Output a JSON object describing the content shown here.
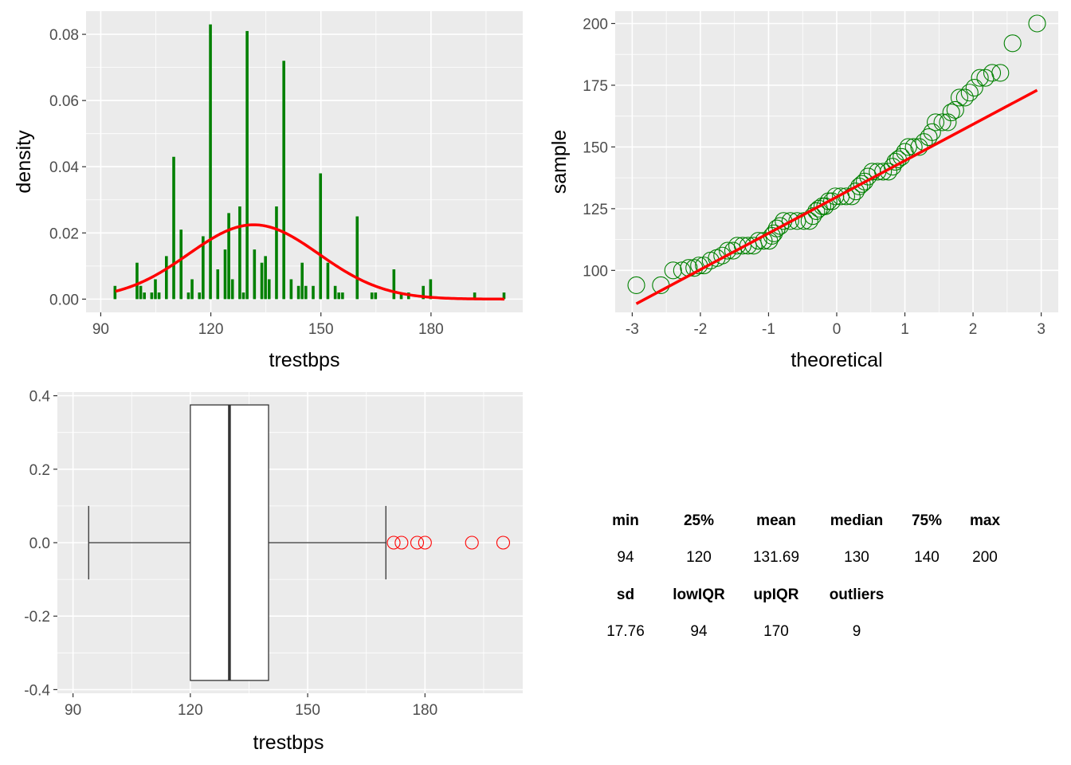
{
  "colors": {
    "panel_bg": "#ebebeb",
    "grid": "#ffffff",
    "bar": "#008000",
    "curve": "#ff0000",
    "qq_point": "#008000",
    "qq_line": "#ff0000",
    "outlier": "#ff0000"
  },
  "chart_data": [
    {
      "type": "bar",
      "kind": "histogram",
      "xlabel": "trestbps",
      "ylabel": "density",
      "xlim": [
        86,
        205
      ],
      "ylim": [
        -0.004,
        0.087
      ],
      "x_ticks": [
        90,
        120,
        150,
        180
      ],
      "y_ticks": [
        0.0,
        0.02,
        0.04,
        0.06,
        0.08
      ],
      "x_tick_labels": [
        "90",
        "120",
        "150",
        "180"
      ],
      "y_tick_labels": [
        "0.00",
        "0.02",
        "0.04",
        "0.06",
        "0.08"
      ],
      "bars": [
        {
          "x": 94,
          "value": 0.004
        },
        {
          "x": 100,
          "value": 0.011
        },
        {
          "x": 101,
          "value": 0.004
        },
        {
          "x": 102,
          "value": 0.002
        },
        {
          "x": 104,
          "value": 0.002
        },
        {
          "x": 105,
          "value": 0.006
        },
        {
          "x": 106,
          "value": 0.002
        },
        {
          "x": 108,
          "value": 0.013
        },
        {
          "x": 110,
          "value": 0.043
        },
        {
          "x": 112,
          "value": 0.021
        },
        {
          "x": 114,
          "value": 0.002
        },
        {
          "x": 115,
          "value": 0.006
        },
        {
          "x": 117,
          "value": 0.002
        },
        {
          "x": 118,
          "value": 0.019
        },
        {
          "x": 120,
          "value": 0.083
        },
        {
          "x": 122,
          "value": 0.009
        },
        {
          "x": 124,
          "value": 0.015
        },
        {
          "x": 125,
          "value": 0.026
        },
        {
          "x": 126,
          "value": 0.006
        },
        {
          "x": 128,
          "value": 0.028
        },
        {
          "x": 129,
          "value": 0.002
        },
        {
          "x": 130,
          "value": 0.081
        },
        {
          "x": 132,
          "value": 0.015
        },
        {
          "x": 134,
          "value": 0.011
        },
        {
          "x": 135,
          "value": 0.013
        },
        {
          "x": 136,
          "value": 0.006
        },
        {
          "x": 138,
          "value": 0.028
        },
        {
          "x": 140,
          "value": 0.072
        },
        {
          "x": 142,
          "value": 0.006
        },
        {
          "x": 144,
          "value": 0.004
        },
        {
          "x": 145,
          "value": 0.011
        },
        {
          "x": 146,
          "value": 0.004
        },
        {
          "x": 148,
          "value": 0.004
        },
        {
          "x": 150,
          "value": 0.038
        },
        {
          "x": 152,
          "value": 0.011
        },
        {
          "x": 154,
          "value": 0.004
        },
        {
          "x": 155,
          "value": 0.002
        },
        {
          "x": 156,
          "value": 0.002
        },
        {
          "x": 160,
          "value": 0.025
        },
        {
          "x": 164,
          "value": 0.002
        },
        {
          "x": 165,
          "value": 0.002
        },
        {
          "x": 170,
          "value": 0.009
        },
        {
          "x": 172,
          "value": 0.002
        },
        {
          "x": 174,
          "value": 0.002
        },
        {
          "x": 178,
          "value": 0.004
        },
        {
          "x": 180,
          "value": 0.006
        },
        {
          "x": 192,
          "value": 0.002
        },
        {
          "x": 200,
          "value": 0.002
        }
      ],
      "bar_width": 1,
      "normal_curve": {
        "mean": 131.69,
        "sd": 17.76,
        "from": 94,
        "to": 200
      }
    },
    {
      "type": "scatter",
      "kind": "qq-plot",
      "xlabel": "theoretical",
      "ylabel": "sample",
      "xlim": [
        -3.25,
        3.25
      ],
      "ylim": [
        83,
        205
      ],
      "x_ticks": [
        -3,
        -2,
        -1,
        0,
        1,
        2,
        3
      ],
      "y_ticks": [
        100,
        125,
        150,
        175,
        200
      ],
      "x_tick_labels": [
        "-3",
        "-2",
        "-1",
        "0",
        "1",
        "2",
        "3"
      ],
      "y_tick_labels": [
        "100",
        "125",
        "150",
        "175",
        "200"
      ],
      "points": [
        {
          "x": -2.94,
          "y": 94
        },
        {
          "x": -2.58,
          "y": 94
        },
        {
          "x": -2.4,
          "y": 100
        },
        {
          "x": -2.27,
          "y": 100
        },
        {
          "x": -2.17,
          "y": 101
        },
        {
          "x": -2.09,
          "y": 101
        },
        {
          "x": -2.02,
          "y": 102
        },
        {
          "x": -1.95,
          "y": 102
        },
        {
          "x": -1.85,
          "y": 104
        },
        {
          "x": -1.76,
          "y": 105
        },
        {
          "x": -1.68,
          "y": 106
        },
        {
          "x": -1.6,
          "y": 108
        },
        {
          "x": -1.52,
          "y": 108
        },
        {
          "x": -1.46,
          "y": 110
        },
        {
          "x": -1.38,
          "y": 110
        },
        {
          "x": -1.3,
          "y": 110
        },
        {
          "x": -1.22,
          "y": 110
        },
        {
          "x": -1.15,
          "y": 112
        },
        {
          "x": -1.07,
          "y": 112
        },
        {
          "x": -0.99,
          "y": 112
        },
        {
          "x": -0.95,
          "y": 114
        },
        {
          "x": -0.92,
          "y": 115
        },
        {
          "x": -0.88,
          "y": 117
        },
        {
          "x": -0.83,
          "y": 118
        },
        {
          "x": -0.78,
          "y": 120
        },
        {
          "x": -0.68,
          "y": 120
        },
        {
          "x": -0.58,
          "y": 120
        },
        {
          "x": -0.48,
          "y": 120
        },
        {
          "x": -0.4,
          "y": 120
        },
        {
          "x": -0.35,
          "y": 122
        },
        {
          "x": -0.3,
          "y": 124
        },
        {
          "x": -0.26,
          "y": 125
        },
        {
          "x": -0.21,
          "y": 126
        },
        {
          "x": -0.17,
          "y": 126
        },
        {
          "x": -0.12,
          "y": 128
        },
        {
          "x": -0.07,
          "y": 128
        },
        {
          "x": -0.02,
          "y": 130
        },
        {
          "x": 0.06,
          "y": 130
        },
        {
          "x": 0.14,
          "y": 130
        },
        {
          "x": 0.22,
          "y": 130
        },
        {
          "x": 0.28,
          "y": 132
        },
        {
          "x": 0.33,
          "y": 134
        },
        {
          "x": 0.37,
          "y": 135
        },
        {
          "x": 0.41,
          "y": 136
        },
        {
          "x": 0.46,
          "y": 138
        },
        {
          "x": 0.52,
          "y": 140
        },
        {
          "x": 0.6,
          "y": 140
        },
        {
          "x": 0.68,
          "y": 140
        },
        {
          "x": 0.76,
          "y": 140
        },
        {
          "x": 0.82,
          "y": 142
        },
        {
          "x": 0.86,
          "y": 144
        },
        {
          "x": 0.9,
          "y": 145
        },
        {
          "x": 0.95,
          "y": 146
        },
        {
          "x": 1.0,
          "y": 148
        },
        {
          "x": 1.05,
          "y": 150
        },
        {
          "x": 1.13,
          "y": 150
        },
        {
          "x": 1.21,
          "y": 150
        },
        {
          "x": 1.28,
          "y": 152
        },
        {
          "x": 1.35,
          "y": 154
        },
        {
          "x": 1.4,
          "y": 156
        },
        {
          "x": 1.45,
          "y": 160
        },
        {
          "x": 1.55,
          "y": 160
        },
        {
          "x": 1.63,
          "y": 160
        },
        {
          "x": 1.68,
          "y": 164
        },
        {
          "x": 1.74,
          "y": 165
        },
        {
          "x": 1.8,
          "y": 170
        },
        {
          "x": 1.88,
          "y": 170
        },
        {
          "x": 1.95,
          "y": 172
        },
        {
          "x": 2.02,
          "y": 174
        },
        {
          "x": 2.1,
          "y": 178
        },
        {
          "x": 2.18,
          "y": 178
        },
        {
          "x": 2.28,
          "y": 180
        },
        {
          "x": 2.4,
          "y": 180
        },
        {
          "x": 2.58,
          "y": 192
        },
        {
          "x": 2.94,
          "y": 200
        }
      ],
      "reference_line": {
        "x1": -2.94,
        "y1": 86.5,
        "x2": 2.94,
        "y2": 173
      }
    },
    {
      "type": "box",
      "kind": "horizontal-boxplot",
      "xlabel": "trestbps",
      "ylabel": "",
      "xlim": [
        86,
        205
      ],
      "ylim": [
        -0.41,
        0.41
      ],
      "x_ticks": [
        90,
        120,
        150,
        180
      ],
      "y_ticks": [
        -0.4,
        -0.2,
        0.0,
        0.2,
        0.4
      ],
      "x_tick_labels": [
        "90",
        "120",
        "150",
        "180"
      ],
      "y_tick_labels": [
        "-0.4",
        "-0.2",
        "0.0",
        "0.2",
        "0.4"
      ],
      "whisker_low": 94,
      "q1": 120,
      "median": 130,
      "q3": 140,
      "whisker_high": 170,
      "box_half_height": 0.375,
      "whisker_cap_half_height": 0.1,
      "outliers": [
        172,
        174,
        178,
        180,
        192,
        200
      ]
    }
  ],
  "stats": {
    "row1_headers": [
      "min",
      "25%",
      "mean",
      "median",
      "75%",
      "max"
    ],
    "row1_values": [
      "94",
      "120",
      "131.69",
      "130",
      "140",
      "200"
    ],
    "row2_headers": [
      "sd",
      "lowIQR",
      "upIQR",
      "outliers"
    ],
    "row2_values": [
      "17.76",
      "94",
      "170",
      "9"
    ]
  }
}
